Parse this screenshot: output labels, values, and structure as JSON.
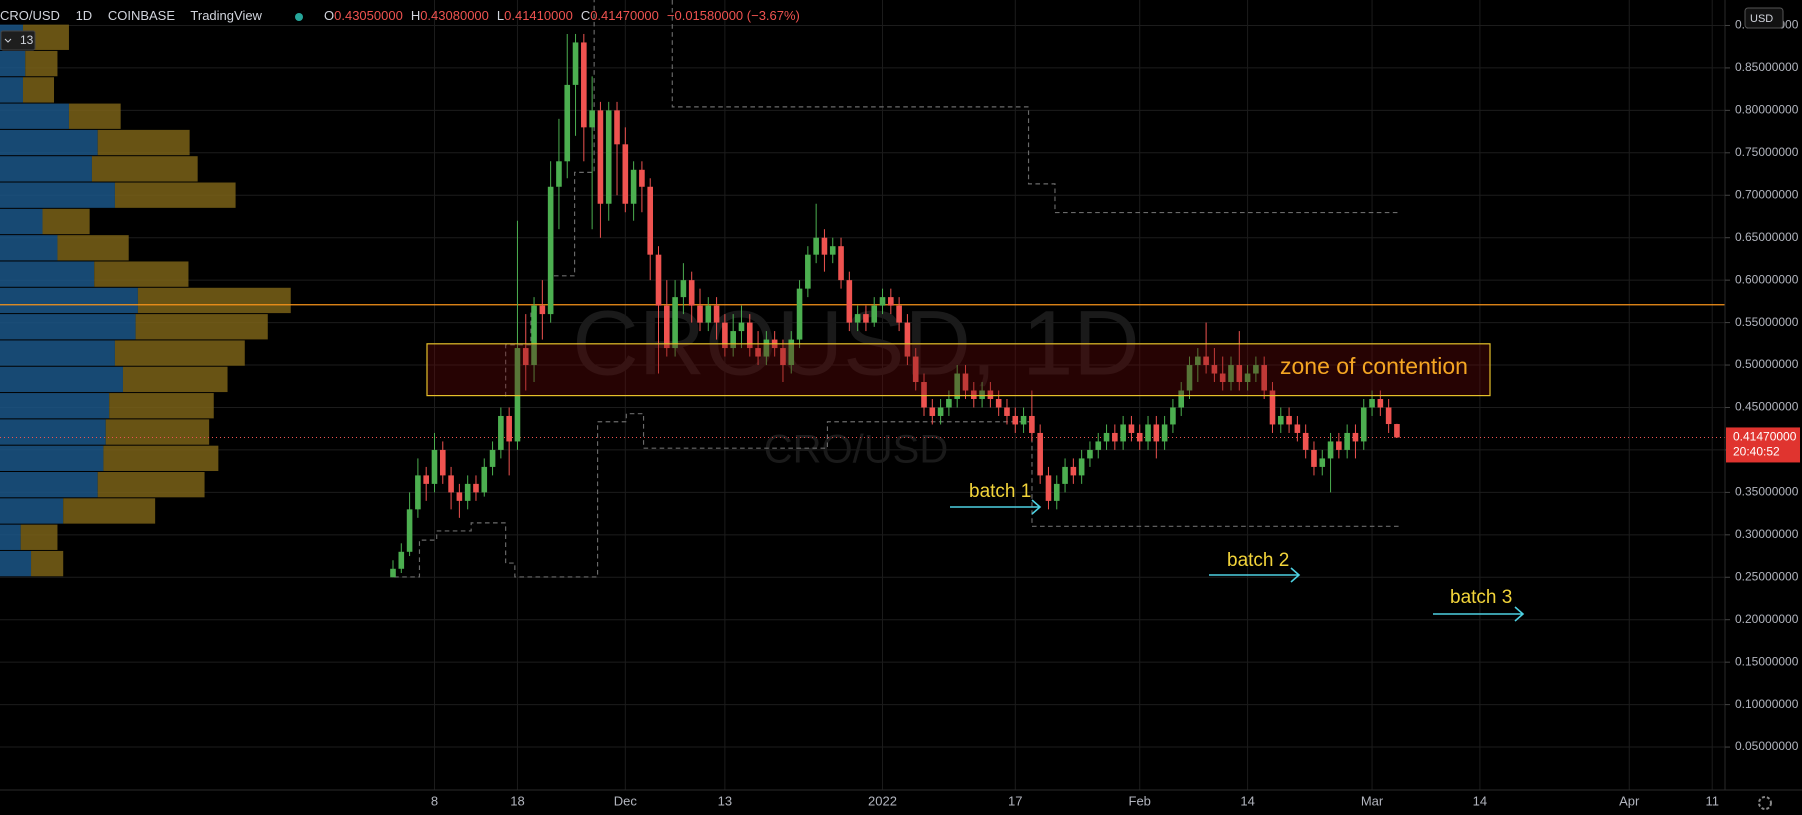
{
  "header": {
    "symbol": "CRO/USD",
    "interval": "1D",
    "exchange": "COINBASE",
    "source": "TradingView",
    "fields": [
      {
        "key": "O",
        "value": "0.43050000"
      },
      {
        "key": "H",
        "value": "0.43080000"
      },
      {
        "key": "L",
        "value": "0.41410000"
      },
      {
        "key": "C",
        "value": "0.41470000"
      }
    ],
    "change": "−0.01580000 (−3.67%)",
    "currency": "USD",
    "profile_badge": "13"
  },
  "chart_data": {
    "type": "candlestick",
    "watermark": "CROUSD, 1D",
    "watermark_sub": "CRO/USD",
    "up_color": "#4caf50",
    "down_color": "#ef5350",
    "grid": true,
    "categories": [
      null,
      null,
      null,
      null,
      null,
      "8",
      null,
      null,
      null,
      null,
      null,
      null,
      null,
      null,
      null,
      "18",
      null,
      null,
      null,
      null,
      null,
      null,
      null,
      null,
      null,
      null,
      null,
      null,
      "Dec",
      null,
      null,
      null,
      null,
      null,
      null,
      null,
      null,
      null,
      null,
      null,
      "13",
      null,
      null,
      null,
      null,
      null,
      null,
      null,
      null,
      null,
      null,
      null,
      null,
      null,
      null,
      null,
      null,
      null,
      null,
      "2022",
      null,
      null,
      null,
      null,
      null,
      null,
      null,
      null,
      null,
      null,
      null,
      null,
      null,
      null,
      null,
      "17",
      null,
      null,
      null,
      null,
      null,
      null,
      null,
      null,
      null,
      null,
      null,
      null,
      null,
      null,
      "Feb",
      null,
      null,
      null,
      null,
      null,
      null,
      null,
      null,
      null,
      null,
      null,
      null,
      "14",
      null,
      null,
      null,
      null,
      null,
      null,
      null,
      null,
      null,
      null,
      null,
      null,
      null,
      null,
      "Mar",
      null,
      null,
      null,
      null,
      null,
      null,
      null,
      null,
      null,
      null,
      null,
      null,
      "14",
      null,
      null,
      null,
      null,
      null,
      null,
      null,
      null,
      null,
      null,
      null,
      null,
      null,
      null,
      null,
      null,
      null,
      "Apr",
      null,
      null,
      null,
      null,
      null,
      null,
      null,
      null,
      null,
      "11",
      null
    ],
    "ohlc": [
      [
        0.25,
        0.27,
        0.25,
        0.26
      ],
      [
        0.26,
        0.29,
        0.255,
        0.28
      ],
      [
        0.28,
        0.35,
        0.275,
        0.33
      ],
      [
        0.33,
        0.39,
        0.32,
        0.37
      ],
      [
        0.37,
        0.38,
        0.34,
        0.36
      ],
      [
        0.36,
        0.42,
        0.35,
        0.4
      ],
      [
        0.4,
        0.41,
        0.36,
        0.37
      ],
      [
        0.37,
        0.38,
        0.33,
        0.35
      ],
      [
        0.35,
        0.36,
        0.32,
        0.34
      ],
      [
        0.34,
        0.37,
        0.33,
        0.36
      ],
      [
        0.36,
        0.37,
        0.34,
        0.35
      ],
      [
        0.35,
        0.39,
        0.345,
        0.38
      ],
      [
        0.38,
        0.41,
        0.37,
        0.4
      ],
      [
        0.4,
        0.45,
        0.39,
        0.44
      ],
      [
        0.44,
        0.45,
        0.37,
        0.41
      ],
      [
        0.41,
        0.67,
        0.4,
        0.52
      ],
      [
        0.52,
        0.56,
        0.47,
        0.5
      ],
      [
        0.5,
        0.58,
        0.48,
        0.57
      ],
      [
        0.57,
        0.6,
        0.53,
        0.56
      ],
      [
        0.56,
        0.74,
        0.55,
        0.71
      ],
      [
        0.71,
        0.79,
        0.66,
        0.74
      ],
      [
        0.74,
        0.89,
        0.72,
        0.83
      ],
      [
        0.83,
        0.89,
        0.77,
        0.88
      ],
      [
        0.88,
        0.89,
        0.74,
        0.78
      ],
      [
        0.78,
        0.84,
        0.66,
        0.8
      ],
      [
        0.8,
        0.81,
        0.65,
        0.69
      ],
      [
        0.69,
        0.81,
        0.67,
        0.8
      ],
      [
        0.8,
        0.81,
        0.7,
        0.76
      ],
      [
        0.76,
        0.78,
        0.68,
        0.69
      ],
      [
        0.69,
        0.74,
        0.67,
        0.73
      ],
      [
        0.73,
        0.74,
        0.68,
        0.71
      ],
      [
        0.71,
        0.72,
        0.6,
        0.63
      ],
      [
        0.63,
        0.64,
        0.49,
        0.57
      ],
      [
        0.57,
        0.6,
        0.51,
        0.52
      ],
      [
        0.52,
        0.6,
        0.51,
        0.58
      ],
      [
        0.58,
        0.62,
        0.56,
        0.6
      ],
      [
        0.6,
        0.61,
        0.55,
        0.57
      ],
      [
        0.57,
        0.59,
        0.54,
        0.55
      ],
      [
        0.55,
        0.58,
        0.54,
        0.57
      ],
      [
        0.57,
        0.58,
        0.53,
        0.55
      ],
      [
        0.55,
        0.56,
        0.51,
        0.52
      ],
      [
        0.52,
        0.56,
        0.51,
        0.54
      ],
      [
        0.54,
        0.57,
        0.52,
        0.55
      ],
      [
        0.55,
        0.56,
        0.51,
        0.52
      ],
      [
        0.52,
        0.54,
        0.5,
        0.51
      ],
      [
        0.51,
        0.54,
        0.5,
        0.53
      ],
      [
        0.53,
        0.54,
        0.51,
        0.52
      ],
      [
        0.52,
        0.53,
        0.48,
        0.5
      ],
      [
        0.5,
        0.54,
        0.49,
        0.53
      ],
      [
        0.53,
        0.6,
        0.52,
        0.59
      ],
      [
        0.59,
        0.64,
        0.58,
        0.63
      ],
      [
        0.63,
        0.69,
        0.62,
        0.65
      ],
      [
        0.65,
        0.66,
        0.61,
        0.63
      ],
      [
        0.63,
        0.65,
        0.62,
        0.64
      ],
      [
        0.64,
        0.65,
        0.59,
        0.6
      ],
      [
        0.6,
        0.61,
        0.54,
        0.55
      ],
      [
        0.55,
        0.57,
        0.54,
        0.56
      ],
      [
        0.56,
        0.57,
        0.54,
        0.55
      ],
      [
        0.55,
        0.58,
        0.545,
        0.57
      ],
      [
        0.57,
        0.59,
        0.56,
        0.58
      ],
      [
        0.58,
        0.59,
        0.56,
        0.57
      ],
      [
        0.57,
        0.58,
        0.54,
        0.55
      ],
      [
        0.55,
        0.56,
        0.5,
        0.51
      ],
      [
        0.51,
        0.52,
        0.47,
        0.48
      ],
      [
        0.48,
        0.49,
        0.44,
        0.45
      ],
      [
        0.45,
        0.46,
        0.43,
        0.44
      ],
      [
        0.44,
        0.46,
        0.43,
        0.45
      ],
      [
        0.45,
        0.47,
        0.44,
        0.46
      ],
      [
        0.46,
        0.5,
        0.45,
        0.49
      ],
      [
        0.49,
        0.5,
        0.46,
        0.47
      ],
      [
        0.47,
        0.48,
        0.45,
        0.46
      ],
      [
        0.46,
        0.48,
        0.45,
        0.47
      ],
      [
        0.47,
        0.48,
        0.45,
        0.46
      ],
      [
        0.46,
        0.47,
        0.44,
        0.45
      ],
      [
        0.45,
        0.46,
        0.43,
        0.44
      ],
      [
        0.44,
        0.45,
        0.42,
        0.43
      ],
      [
        0.43,
        0.45,
        0.42,
        0.44
      ],
      [
        0.44,
        0.47,
        0.41,
        0.42
      ],
      [
        0.42,
        0.43,
        0.36,
        0.37
      ],
      [
        0.37,
        0.38,
        0.33,
        0.34
      ],
      [
        0.34,
        0.37,
        0.33,
        0.36
      ],
      [
        0.36,
        0.39,
        0.35,
        0.38
      ],
      [
        0.38,
        0.39,
        0.36,
        0.37
      ],
      [
        0.37,
        0.4,
        0.36,
        0.39
      ],
      [
        0.39,
        0.41,
        0.38,
        0.4
      ],
      [
        0.4,
        0.42,
        0.39,
        0.41
      ],
      [
        0.41,
        0.43,
        0.4,
        0.42
      ],
      [
        0.42,
        0.43,
        0.4,
        0.41
      ],
      [
        0.41,
        0.44,
        0.4,
        0.43
      ],
      [
        0.43,
        0.44,
        0.41,
        0.42
      ],
      [
        0.42,
        0.43,
        0.4,
        0.41
      ],
      [
        0.41,
        0.44,
        0.4,
        0.43
      ],
      [
        0.43,
        0.44,
        0.39,
        0.41
      ],
      [
        0.41,
        0.44,
        0.4,
        0.43
      ],
      [
        0.43,
        0.46,
        0.42,
        0.45
      ],
      [
        0.45,
        0.48,
        0.44,
        0.47
      ],
      [
        0.47,
        0.51,
        0.46,
        0.5
      ],
      [
        0.5,
        0.52,
        0.48,
        0.51
      ],
      [
        0.51,
        0.55,
        0.49,
        0.5
      ],
      [
        0.5,
        0.52,
        0.48,
        0.49
      ],
      [
        0.49,
        0.51,
        0.47,
        0.48
      ],
      [
        0.48,
        0.51,
        0.47,
        0.5
      ],
      [
        0.5,
        0.54,
        0.47,
        0.48
      ],
      [
        0.48,
        0.5,
        0.47,
        0.49
      ],
      [
        0.49,
        0.51,
        0.48,
        0.5
      ],
      [
        0.5,
        0.51,
        0.46,
        0.47
      ],
      [
        0.47,
        0.48,
        0.42,
        0.43
      ],
      [
        0.43,
        0.45,
        0.42,
        0.44
      ],
      [
        0.44,
        0.45,
        0.42,
        0.43
      ],
      [
        0.43,
        0.44,
        0.41,
        0.42
      ],
      [
        0.42,
        0.43,
        0.39,
        0.4
      ],
      [
        0.4,
        0.41,
        0.37,
        0.38
      ],
      [
        0.38,
        0.4,
        0.37,
        0.39
      ],
      [
        0.39,
        0.42,
        0.35,
        0.41
      ],
      [
        0.41,
        0.42,
        0.39,
        0.4
      ],
      [
        0.4,
        0.43,
        0.39,
        0.42
      ],
      [
        0.42,
        0.43,
        0.39,
        0.41
      ],
      [
        0.41,
        0.46,
        0.4,
        0.45
      ],
      [
        0.45,
        0.47,
        0.44,
        0.46
      ],
      [
        0.46,
        0.47,
        0.44,
        0.45
      ],
      [
        0.45,
        0.46,
        0.42,
        0.4305
      ],
      [
        0.4305,
        0.4308,
        0.4141,
        0.4147
      ],
      null,
      null,
      null,
      null,
      null,
      null,
      null,
      null,
      null,
      null,
      null,
      null,
      null,
      null,
      null,
      null,
      null,
      null,
      null,
      null,
      null,
      null,
      null,
      null,
      null,
      null,
      null,
      null,
      null,
      null,
      null,
      null,
      null,
      null,
      null,
      null,
      null,
      null,
      null
    ],
    "ylim": [
      0,
      0.93
    ],
    "yticks": [
      {
        "value": 0.05,
        "label": "0.05000000"
      },
      {
        "value": 0.1,
        "label": "0.10000000"
      },
      {
        "value": 0.15,
        "label": "0.15000000"
      },
      {
        "value": 0.2,
        "label": "0.20000000"
      },
      {
        "value": 0.25,
        "label": "0.25000000"
      },
      {
        "value": 0.3,
        "label": "0.30000000"
      },
      {
        "value": 0.35,
        "label": "0.35000000"
      },
      {
        "value": 0.4,
        "label": "0.40000000"
      },
      {
        "value": 0.45,
        "label": "0.45000000"
      },
      {
        "value": 0.5,
        "label": "0.50000000"
      },
      {
        "value": 0.55,
        "label": "0.55000000"
      },
      {
        "value": 0.6,
        "label": "0.60000000"
      },
      {
        "value": 0.65,
        "label": "0.65000000"
      },
      {
        "value": 0.7,
        "label": "0.70000000"
      },
      {
        "value": 0.75,
        "label": "0.75000000"
      },
      {
        "value": 0.8,
        "label": "0.80000000"
      },
      {
        "value": 0.85,
        "label": "0.85000000"
      },
      {
        "value": 0.9,
        "label": "0.90000000"
      }
    ],
    "price_label": "0.41470000",
    "countdown": "20:40:52",
    "horizontal_line": 0.571,
    "zone": {
      "label": "zone of contention",
      "range": [
        0.464,
        0.525
      ]
    },
    "notes": [
      "batch 1",
      "batch 2",
      "batch 3"
    ],
    "volume_profile": {
      "bins": [
        0.25,
        0.281,
        0.312,
        0.343,
        0.374,
        0.405,
        0.436,
        0.467,
        0.498,
        0.529,
        0.56,
        0.591,
        0.622,
        0.653,
        0.684,
        0.715,
        0.746,
        0.777,
        0.808,
        0.839,
        0.87,
        0.901
      ],
      "buy": [
        27,
        18,
        55,
        85,
        90,
        92,
        95,
        107,
        100,
        118,
        120,
        82,
        50,
        37,
        100,
        80,
        85,
        60,
        20,
        22,
        20
      ],
      "sell": [
        28,
        32,
        80,
        93,
        100,
        90,
        91,
        91,
        113,
        115,
        133,
        82,
        62,
        41,
        105,
        92,
        80,
        45,
        27,
        28,
        40
      ]
    }
  }
}
